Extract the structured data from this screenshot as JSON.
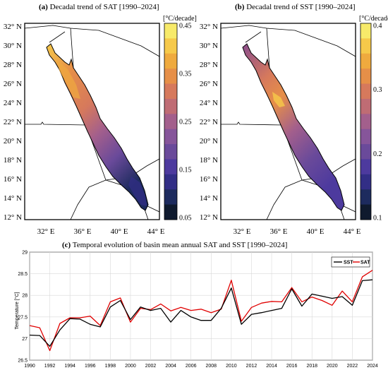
{
  "panel_a": {
    "label": "(a)",
    "title": "Decadal trend of SAT [1990–2024]",
    "colorbar_unit": "[°C/decade]",
    "colorbar_ticks": [
      "0.45",
      "0.35",
      "0.25",
      "0.15",
      "0.05"
    ]
  },
  "panel_b": {
    "label": "(b)",
    "title": "Decadal trend of SST [1990–2024]",
    "colorbar_unit": "[°C/decade]",
    "colorbar_ticks": [
      "0.4",
      "0.3",
      "0.2",
      "0.1"
    ]
  },
  "map_axes": {
    "lat_ticks": [
      "32° N",
      "30° N",
      "28° N",
      "26° N",
      "24° N",
      "22° N",
      "20° N",
      "18° N",
      "16° N",
      "14° N",
      "12° N"
    ],
    "lon_ticks": [
      "32° E",
      "36° E",
      "40° E",
      "44° E"
    ]
  },
  "panel_c": {
    "label": "(c)",
    "title": "Temporal evolution of basin mean annual SAT and SST [1990–2024]"
  },
  "colors": {
    "sst": "#000000",
    "sat": "#e00000",
    "colormap": [
      "#0f1a2e",
      "#1d2b5e",
      "#322e86",
      "#4d3a9e",
      "#6a4a9a",
      "#86559a",
      "#a35f8c",
      "#bf6c74",
      "#d6795c",
      "#e68f48",
      "#efaa3e",
      "#f6c94a",
      "#f7ea6a"
    ]
  },
  "chart_data": {
    "type": "line",
    "x": [
      1990,
      1991,
      1992,
      1993,
      1994,
      1995,
      1996,
      1997,
      1998,
      1999,
      2000,
      2001,
      2002,
      2003,
      2004,
      2005,
      2006,
      2007,
      2008,
      2009,
      2010,
      2011,
      2012,
      2013,
      2014,
      2015,
      2016,
      2017,
      2018,
      2019,
      2020,
      2021,
      2022,
      2023,
      2024
    ],
    "x_ticks": [
      "1990",
      "1992",
      "1994",
      "1996",
      "1998",
      "2000",
      "2002",
      "2004",
      "2006",
      "2008",
      "2010",
      "2012",
      "2014",
      "2016",
      "2018",
      "2020",
      "2022",
      "2024"
    ],
    "series": [
      {
        "name": "SST",
        "color": "#000000",
        "values": [
          27.08,
          27.07,
          26.82,
          27.2,
          27.46,
          27.45,
          27.33,
          27.27,
          27.73,
          27.88,
          27.44,
          27.73,
          27.65,
          27.7,
          27.38,
          27.65,
          27.5,
          27.42,
          27.42,
          27.7,
          28.17,
          27.33,
          27.56,
          27.6,
          27.65,
          27.7,
          28.15,
          27.75,
          28.03,
          27.98,
          27.93,
          27.97,
          27.77,
          28.34,
          28.36
        ]
      },
      {
        "name": "SAT",
        "color": "#e00000",
        "values": [
          27.3,
          27.25,
          26.72,
          27.35,
          27.48,
          27.48,
          27.52,
          27.3,
          27.85,
          27.94,
          27.38,
          27.7,
          27.67,
          27.8,
          27.64,
          27.72,
          27.65,
          27.68,
          27.6,
          27.68,
          28.35,
          27.4,
          27.72,
          27.82,
          27.86,
          27.85,
          28.18,
          27.85,
          27.96,
          27.88,
          27.77,
          28.1,
          27.85,
          28.43,
          28.58
        ]
      }
    ],
    "ylabel": "Temperature [°C]",
    "ylim": [
      26.5,
      29
    ],
    "y_ticks": [
      "29",
      "28.5",
      "28",
      "27.5",
      "27",
      "26.5"
    ],
    "xlim": [
      1990,
      2024
    ],
    "grid": true,
    "legend": "top-right"
  }
}
